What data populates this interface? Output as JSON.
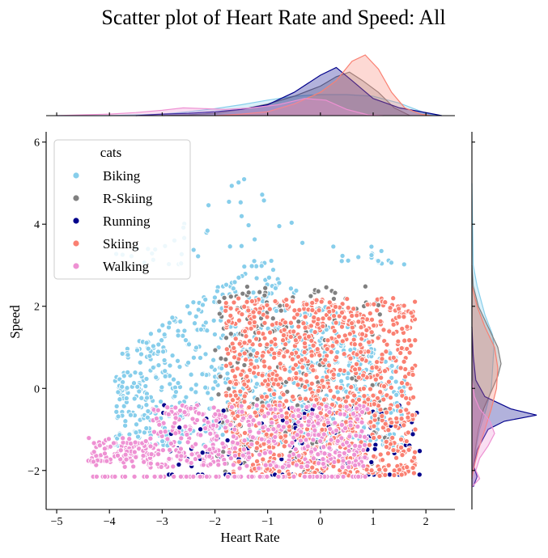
{
  "chart_data": {
    "type": "scatter",
    "title": "Scatter plot of Heart Rate and Speed: All",
    "xlabel": "Heart Rate",
    "ylabel": "Speed",
    "xlim": [
      -5.2,
      2.55
    ],
    "ylim": [
      -2.95,
      6.25
    ],
    "xticks": [
      -5,
      -4,
      -3,
      -2,
      -1,
      0,
      1,
      2
    ],
    "yticks": [
      -2,
      0,
      2,
      4,
      6
    ],
    "xtick_labels": [
      "−5",
      "−4",
      "−3",
      "−2",
      "−1",
      "0",
      "1",
      "2"
    ],
    "ytick_labels": [
      "−2",
      "0",
      "2",
      "4",
      "6"
    ],
    "grid": false,
    "legend": {
      "title": "cats",
      "position": "top-left"
    },
    "series": [
      {
        "name": "Biking",
        "color": "#87CEEB",
        "region": {
          "x": [
            -3.9,
            1.6
          ],
          "y": [
            -1.9,
            5.4
          ]
        },
        "marginal_x_kde": [
          [
            -5.0,
            0.0
          ],
          [
            -4.0,
            0.0
          ],
          [
            -3.5,
            0.01
          ],
          [
            -3.0,
            0.02
          ],
          [
            -2.5,
            0.05
          ],
          [
            -2.0,
            0.09
          ],
          [
            -1.5,
            0.14
          ],
          [
            -1.0,
            0.2
          ],
          [
            -0.5,
            0.25
          ],
          [
            0.0,
            0.27
          ],
          [
            0.5,
            0.27
          ],
          [
            1.0,
            0.25
          ],
          [
            1.5,
            0.16
          ],
          [
            2.0,
            0.03
          ],
          [
            2.3,
            0.0
          ]
        ],
        "marginal_y_kde": [
          [
            -2.2,
            0.0
          ],
          [
            -1.5,
            0.06
          ],
          [
            -1.0,
            0.12
          ],
          [
            -0.5,
            0.22
          ],
          [
            0.0,
            0.3
          ],
          [
            0.5,
            0.32
          ],
          [
            1.0,
            0.34
          ],
          [
            1.3,
            0.32
          ],
          [
            1.8,
            0.2
          ],
          [
            2.5,
            0.08
          ],
          [
            3.0,
            0.02
          ],
          [
            4.0,
            0.01
          ],
          [
            5.0,
            0.0
          ]
        ]
      },
      {
        "name": "R-Skiing",
        "color": "#808080",
        "region": {
          "x": [
            -2.0,
            1.3
          ],
          "y": [
            -2.1,
            2.5
          ]
        },
        "marginal_x_kde": [
          [
            -3.0,
            0.0
          ],
          [
            -2.5,
            0.01
          ],
          [
            -2.0,
            0.03
          ],
          [
            -1.5,
            0.08
          ],
          [
            -1.0,
            0.15
          ],
          [
            -0.5,
            0.25
          ],
          [
            0.0,
            0.38
          ],
          [
            0.3,
            0.5
          ],
          [
            0.55,
            0.56
          ],
          [
            0.8,
            0.45
          ],
          [
            1.1,
            0.3
          ],
          [
            1.4,
            0.1
          ],
          [
            1.7,
            0.0
          ]
        ],
        "marginal_y_kde": [
          [
            -2.2,
            0.0
          ],
          [
            -1.5,
            0.05
          ],
          [
            -1.0,
            0.1
          ],
          [
            -0.5,
            0.18
          ],
          [
            0.0,
            0.32
          ],
          [
            0.3,
            0.4
          ],
          [
            0.6,
            0.45
          ],
          [
            1.0,
            0.4
          ],
          [
            1.5,
            0.25
          ],
          [
            2.0,
            0.1
          ],
          [
            2.5,
            0.02
          ],
          [
            3.0,
            0.0
          ]
        ]
      },
      {
        "name": "Running",
        "color": "#00008B",
        "region": {
          "x": [
            -3.1,
            1.9
          ],
          "y": [
            -2.2,
            -0.3
          ]
        },
        "marginal_x_kde": [
          [
            -3.5,
            0.0
          ],
          [
            -3.0,
            0.02
          ],
          [
            -2.5,
            0.03
          ],
          [
            -2.0,
            0.05
          ],
          [
            -1.5,
            0.08
          ],
          [
            -1.0,
            0.14
          ],
          [
            -0.5,
            0.3
          ],
          [
            0.0,
            0.52
          ],
          [
            0.3,
            0.62
          ],
          [
            0.6,
            0.45
          ],
          [
            1.0,
            0.22
          ],
          [
            1.5,
            0.1
          ],
          [
            2.0,
            0.04
          ],
          [
            2.3,
            0.0
          ]
        ],
        "marginal_y_kde": [
          [
            -2.4,
            0.02
          ],
          [
            -2.15,
            0.08
          ],
          [
            -1.9,
            0.03
          ],
          [
            -1.5,
            0.08
          ],
          [
            -1.0,
            0.25
          ],
          [
            -0.8,
            0.5
          ],
          [
            -0.65,
            1.0
          ],
          [
            -0.5,
            0.6
          ],
          [
            -0.2,
            0.2
          ],
          [
            0.2,
            0.06
          ],
          [
            0.8,
            0.02
          ],
          [
            1.5,
            0.0
          ]
        ]
      },
      {
        "name": "Skiing",
        "color": "#FA8072",
        "region": {
          "x": [
            -1.8,
            1.8
          ],
          "y": [
            -2.15,
            2.2
          ]
        },
        "marginal_x_kde": [
          [
            -2.0,
            0.0
          ],
          [
            -1.5,
            0.02
          ],
          [
            -1.0,
            0.05
          ],
          [
            -0.5,
            0.15
          ],
          [
            0.0,
            0.3
          ],
          [
            0.3,
            0.45
          ],
          [
            0.6,
            0.7
          ],
          [
            0.85,
            0.78
          ],
          [
            1.1,
            0.6
          ],
          [
            1.35,
            0.3
          ],
          [
            1.6,
            0.1
          ],
          [
            1.9,
            0.02
          ],
          [
            2.1,
            0.0
          ]
        ],
        "marginal_y_kde": [
          [
            -2.2,
            0.0
          ],
          [
            -1.8,
            0.05
          ],
          [
            -1.5,
            0.1
          ],
          [
            -1.0,
            0.2
          ],
          [
            -0.5,
            0.3
          ],
          [
            0.0,
            0.38
          ],
          [
            0.5,
            0.4
          ],
          [
            1.0,
            0.35
          ],
          [
            1.5,
            0.2
          ],
          [
            2.0,
            0.08
          ],
          [
            2.5,
            0.0
          ]
        ]
      },
      {
        "name": "Walking",
        "color": "#EE91D3",
        "region": {
          "x": [
            -4.4,
            0.9
          ],
          "y": [
            -2.15,
            -0.4
          ]
        },
        "marginal_x_kde": [
          [
            -5.0,
            0.0
          ],
          [
            -4.5,
            0.01
          ],
          [
            -4.0,
            0.02
          ],
          [
            -3.5,
            0.04
          ],
          [
            -3.0,
            0.07
          ],
          [
            -2.6,
            0.1
          ],
          [
            -2.2,
            0.09
          ],
          [
            -1.8,
            0.08
          ],
          [
            -1.3,
            0.1
          ],
          [
            -0.8,
            0.14
          ],
          [
            -0.3,
            0.22
          ],
          [
            0.1,
            0.2
          ],
          [
            0.5,
            0.08
          ],
          [
            0.9,
            0.01
          ],
          [
            1.2,
            0.0
          ]
        ],
        "marginal_y_kde": [
          [
            -2.4,
            0.0
          ],
          [
            -2.2,
            0.12
          ],
          [
            -2.0,
            0.06
          ],
          [
            -1.7,
            0.12
          ],
          [
            -1.4,
            0.25
          ],
          [
            -1.1,
            0.35
          ],
          [
            -0.8,
            0.28
          ],
          [
            -0.5,
            0.12
          ],
          [
            -0.2,
            0.04
          ],
          [
            0.2,
            0.0
          ]
        ]
      }
    ]
  }
}
